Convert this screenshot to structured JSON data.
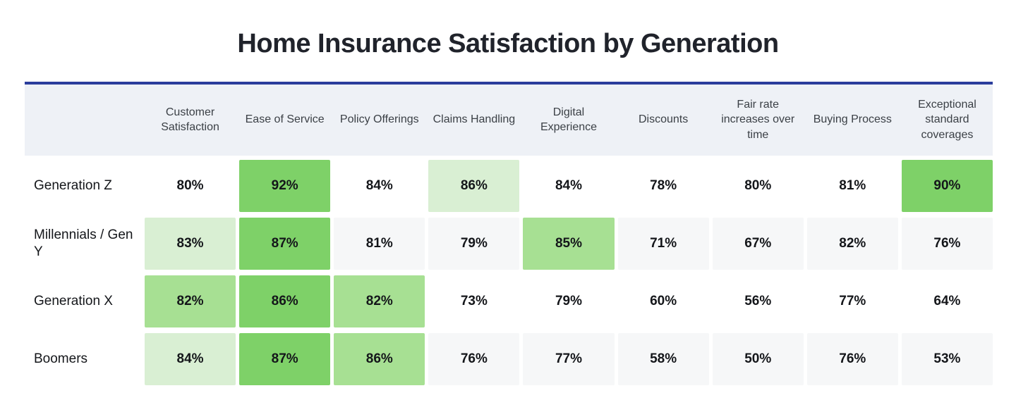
{
  "title": "Home Insurance Satisfaction by Generation",
  "colors": {
    "accent_line": "#2b3d9c",
    "header_bg": "#eef1f6",
    "zebra": "#f6f7f8",
    "light_green": "#d9efd3",
    "medium_green": "#a7e093",
    "strong_green": "#7ed168"
  },
  "chart_data": {
    "type": "heatmap",
    "title": "Home Insurance Satisfaction by Generation",
    "categories": [
      "Customer Satisfaction",
      "Ease of Service",
      "Policy Offerings",
      "Claims Handling",
      "Digital Experience",
      "Discounts",
      "Fair rate increases over time",
      "Buying Process",
      "Exceptional standard coverages"
    ],
    "rows": [
      "Generation Z",
      "Millennials / Gen Y",
      "Generation X",
      "Boomers"
    ],
    "values": [
      [
        80,
        92,
        84,
        86,
        84,
        78,
        80,
        81,
        90
      ],
      [
        83,
        87,
        81,
        79,
        85,
        71,
        67,
        82,
        76
      ],
      [
        82,
        86,
        82,
        73,
        79,
        60,
        56,
        77,
        64
      ],
      [
        84,
        87,
        86,
        76,
        77,
        58,
        50,
        76,
        53
      ]
    ],
    "value_suffix": "%",
    "highlight_levels": [
      [
        0,
        3,
        0,
        1,
        0,
        0,
        0,
        0,
        3
      ],
      [
        1,
        3,
        0,
        0,
        2,
        0,
        0,
        0,
        0
      ],
      [
        2,
        3,
        2,
        0,
        0,
        0,
        0,
        0,
        0
      ],
      [
        1,
        3,
        2,
        0,
        0,
        0,
        0,
        0,
        0
      ]
    ],
    "zebra_rows": [
      false,
      true,
      false,
      true
    ],
    "highlight_legend": {
      "0": "no highlight",
      "1": "light green",
      "2": "medium green",
      "3": "strong green"
    }
  }
}
